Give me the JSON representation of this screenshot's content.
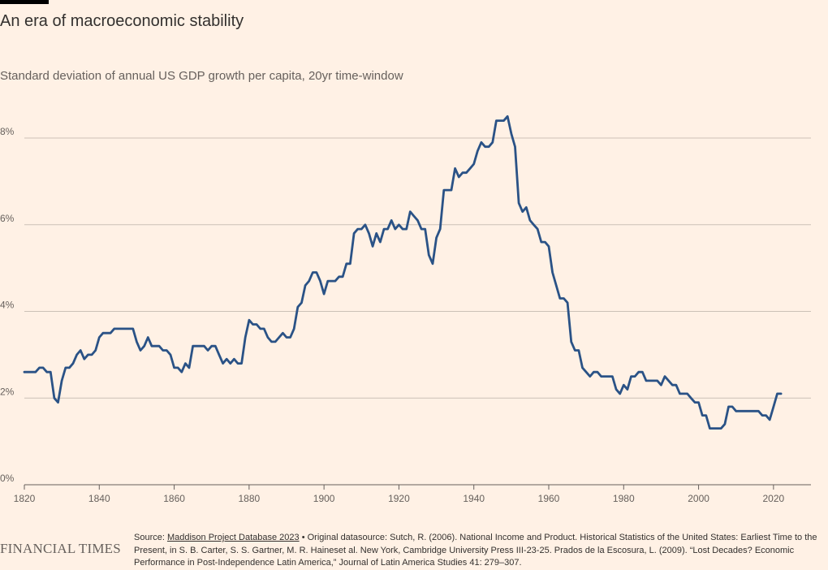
{
  "title": "An era of macroeconomic stability",
  "subtitle": "Standard deviation of annual US GDP growth per capita, 20yr time-window",
  "chart_data": {
    "type": "line",
    "title": "An era of macroeconomic stability",
    "subtitle": "Standard deviation of annual US GDP growth per capita, 20yr time-window",
    "xlabel": "",
    "ylabel": "",
    "xlim": [
      1820,
      2030
    ],
    "ylim": [
      0,
      8.8
    ],
    "x_ticks": [
      1820,
      1840,
      1860,
      1880,
      1900,
      1920,
      1940,
      1960,
      1980,
      2000,
      2020
    ],
    "y_ticks": [
      0,
      2,
      4,
      6,
      8
    ],
    "y_tick_format": "%",
    "grid": "horizontal",
    "line_color": "#2a5286",
    "series": [
      {
        "x": [
          1820,
          1822,
          1823,
          1824,
          1825,
          1826,
          1827,
          1828,
          1829,
          1830,
          1831,
          1832,
          1833,
          1834,
          1835,
          1836,
          1837,
          1838,
          1839,
          1840,
          1841,
          1842,
          1843,
          1844,
          1845,
          1846,
          1847,
          1848,
          1849,
          1850,
          1851,
          1852,
          1853,
          1854,
          1855,
          1856,
          1857,
          1858,
          1859,
          1860,
          1861,
          1862,
          1863,
          1864,
          1865,
          1866,
          1867,
          1868,
          1869,
          1870,
          1871,
          1872,
          1873,
          1874,
          1875,
          1876,
          1877,
          1878,
          1879,
          1880,
          1881,
          1882,
          1883,
          1884,
          1885,
          1886,
          1887,
          1888,
          1889,
          1890,
          1891,
          1892,
          1893,
          1894,
          1895,
          1896,
          1897,
          1898,
          1899,
          1900,
          1901,
          1902,
          1903,
          1904,
          1905,
          1906,
          1907,
          1908,
          1909,
          1910,
          1911,
          1912,
          1913,
          1914,
          1915,
          1916,
          1917,
          1918,
          1919,
          1920,
          1921,
          1922,
          1923,
          1924,
          1925,
          1926,
          1927,
          1928,
          1929,
          1930,
          1931,
          1932,
          1933,
          1934,
          1935,
          1936,
          1937,
          1938,
          1939,
          1940,
          1941,
          1942,
          1943,
          1944,
          1945,
          1946,
          1947,
          1948,
          1949,
          1950,
          1951,
          1952,
          1953,
          1954,
          1955,
          1956,
          1957,
          1958,
          1959,
          1960,
          1961,
          1962,
          1963,
          1964,
          1965,
          1966,
          1967,
          1968,
          1969,
          1970,
          1971,
          1972,
          1973,
          1974,
          1975,
          1976,
          1977,
          1978,
          1979,
          1980,
          1981,
          1982,
          1983,
          1984,
          1985,
          1986,
          1987,
          1988,
          1989,
          1990,
          1991,
          1992,
          1993,
          1994,
          1995,
          1996,
          1997,
          1998,
          1999,
          2000,
          2001,
          2002,
          2003,
          2004,
          2005,
          2006,
          2007,
          2008,
          2009,
          2010,
          2011,
          2012,
          2013,
          2014,
          2015,
          2016,
          2017,
          2018,
          2019,
          2020,
          2021,
          2022
        ],
        "y": [
          2.6,
          2.6,
          2.6,
          2.7,
          2.7,
          2.6,
          2.6,
          2.0,
          1.9,
          2.4,
          2.7,
          2.7,
          2.8,
          3.0,
          3.1,
          2.9,
          3.0,
          3.0,
          3.1,
          3.4,
          3.5,
          3.5,
          3.5,
          3.6,
          3.6,
          3.6,
          3.6,
          3.6,
          3.6,
          3.3,
          3.1,
          3.2,
          3.4,
          3.2,
          3.2,
          3.2,
          3.1,
          3.1,
          3.0,
          2.7,
          2.7,
          2.6,
          2.8,
          2.7,
          3.2,
          3.2,
          3.2,
          3.2,
          3.1,
          3.2,
          3.2,
          3.0,
          2.8,
          2.9,
          2.8,
          2.9,
          2.8,
          2.8,
          3.4,
          3.8,
          3.7,
          3.7,
          3.6,
          3.6,
          3.4,
          3.3,
          3.3,
          3.4,
          3.5,
          3.4,
          3.4,
          3.6,
          4.1,
          4.2,
          4.6,
          4.7,
          4.9,
          4.9,
          4.7,
          4.4,
          4.7,
          4.7,
          4.7,
          4.8,
          4.8,
          5.1,
          5.1,
          5.8,
          5.9,
          5.9,
          6.0,
          5.8,
          5.5,
          5.8,
          5.6,
          5.9,
          5.9,
          6.1,
          5.9,
          6.0,
          5.9,
          5.9,
          6.3,
          6.2,
          6.1,
          5.9,
          5.9,
          5.3,
          5.1,
          5.7,
          5.9,
          6.8,
          6.8,
          6.8,
          7.3,
          7.1,
          7.2,
          7.2,
          7.3,
          7.4,
          7.7,
          7.9,
          7.8,
          7.8,
          7.9,
          8.4,
          8.4,
          8.4,
          8.5,
          8.1,
          7.8,
          6.5,
          6.3,
          6.4,
          6.1,
          6.0,
          5.9,
          5.6,
          5.6,
          5.5,
          4.9,
          4.6,
          4.3,
          4.3,
          4.2,
          3.3,
          3.1,
          3.1,
          2.7,
          2.6,
          2.5,
          2.6,
          2.6,
          2.5,
          2.5,
          2.5,
          2.5,
          2.2,
          2.1,
          2.3,
          2.2,
          2.5,
          2.5,
          2.6,
          2.6,
          2.4,
          2.4,
          2.4,
          2.4,
          2.3,
          2.5,
          2.4,
          2.3,
          2.3,
          2.1,
          2.1,
          2.1,
          2.0,
          1.9,
          1.9,
          1.6,
          1.6,
          1.3,
          1.3,
          1.3,
          1.3,
          1.4,
          1.8,
          1.8,
          1.7,
          1.7,
          1.7,
          1.7,
          1.7,
          1.7,
          1.7,
          1.6,
          1.6,
          1.5,
          1.8,
          2.1,
          2.1
        ]
      }
    ]
  },
  "footer": {
    "logo": "FINANCIAL TIMES",
    "source_prefix": "Source: ",
    "source_link": "Maddison Project Database 2023",
    "source_rest": " • Original datasource: Sutch, R. (2006). National Income and Product. Historical Statistics of the United States: Earliest Time to the Present, in S. B. Carter, S. S. Gartner, M. R. Haineset al. New York, Cambridge University Press III-23-25. Prados de la Escosura, L. (2009). “Lost Decades? Economic Performance in Post-Independence Latin America,” Journal of Latin America Studies 41: 279–307."
  }
}
